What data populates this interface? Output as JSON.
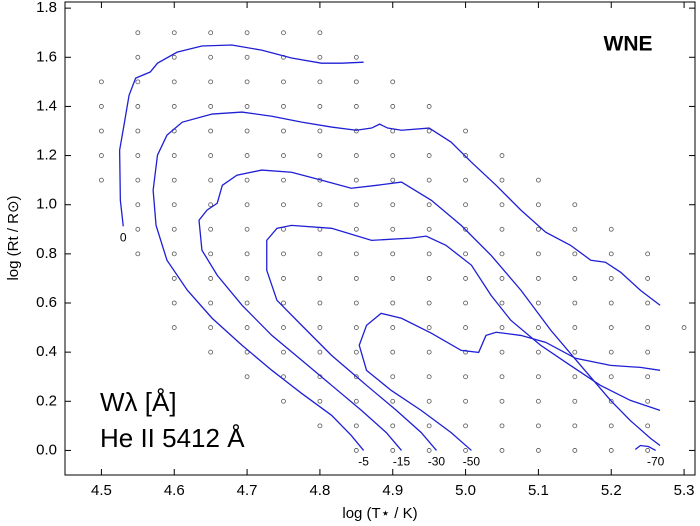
{
  "chart_data": {
    "type": "contour",
    "annotations": [
      "WNE",
      "Wλ [Å]",
      "He II 5412 Å"
    ],
    "x_label": "log (T⋆ / K)",
    "y_label": "log (Rt / R⊙)",
    "xlim": [
      4.45,
      5.315
    ],
    "ylim": [
      -0.1,
      1.825
    ],
    "xticks": [
      4.5,
      4.6,
      4.7,
      4.8,
      4.9,
      {
        "value": 5,
        "label": "5.0"
      },
      5.1,
      5.2,
      5.3
    ],
    "yticks": [
      {
        "value": 0,
        "label": "0.0"
      },
      0.2,
      0.4,
      0.6,
      0.8,
      {
        "value": 1,
        "label": "1.0"
      },
      1.2,
      1.4,
      1.6,
      1.8
    ],
    "color": "#1f1fd6",
    "point_color": "#555555",
    "points": [
      {
        "x": 4.5,
        "y": [
          1.1,
          1.2,
          1.3,
          1.4,
          1.5
        ]
      },
      {
        "x": 4.55,
        "y": [
          0.8,
          0.9,
          1.0,
          1.1,
          1.2,
          1.3,
          1.4,
          1.5,
          1.6,
          1.7
        ]
      },
      {
        "x": 4.6,
        "y": [
          0.5,
          0.6,
          0.7,
          0.8,
          0.9,
          1.0,
          1.1,
          1.2,
          1.3,
          1.4,
          1.5,
          1.6,
          1.7
        ]
      },
      {
        "x": 4.65,
        "y": [
          0.4,
          0.5,
          0.6,
          0.7,
          0.8,
          0.9,
          1.0,
          1.1,
          1.2,
          1.3,
          1.4,
          1.5,
          1.6,
          1.7
        ]
      },
      {
        "x": 4.7,
        "y": [
          0.3,
          0.4,
          0.5,
          0.6,
          0.7,
          0.8,
          0.9,
          1.0,
          1.1,
          1.2,
          1.3,
          1.4,
          1.5,
          1.6,
          1.7
        ]
      },
      {
        "x": 4.75,
        "y": [
          0.2,
          0.3,
          0.4,
          0.5,
          0.6,
          0.7,
          0.8,
          0.9,
          1.0,
          1.1,
          1.2,
          1.3,
          1.4,
          1.5,
          1.6,
          1.7
        ]
      },
      {
        "x": 4.8,
        "y": [
          0.1,
          0.2,
          0.3,
          0.4,
          0.5,
          0.6,
          0.7,
          0.8,
          0.9,
          1.0,
          1.1,
          1.2,
          1.3,
          1.4,
          1.5,
          1.6,
          1.7
        ]
      },
      {
        "x": 4.85,
        "y": [
          0,
          0.1,
          0.2,
          0.3,
          0.4,
          0.5,
          0.6,
          0.7,
          0.8,
          0.9,
          1.0,
          1.1,
          1.2,
          1.3,
          1.4,
          1.5,
          1.6
        ]
      },
      {
        "x": 4.9,
        "y": [
          0,
          0.1,
          0.2,
          0.3,
          0.4,
          0.5,
          0.6,
          0.7,
          0.8,
          0.9,
          1.0,
          1.1,
          1.2,
          1.3,
          1.4,
          1.5
        ]
      },
      {
        "x": 4.95,
        "y": [
          0,
          0.1,
          0.2,
          0.3,
          0.4,
          0.5,
          0.6,
          0.7,
          0.8,
          0.9,
          1.0,
          1.1,
          1.2,
          1.3,
          1.4
        ]
      },
      {
        "x": 5.0,
        "y": [
          0,
          0.1,
          0.2,
          0.3,
          0.4,
          0.5,
          0.6,
          0.7,
          0.8,
          0.9,
          1.0,
          1.1,
          1.2,
          1.3
        ]
      },
      {
        "x": 5.05,
        "y": [
          0,
          0.1,
          0.2,
          0.3,
          0.4,
          0.5,
          0.6,
          0.7,
          0.8,
          0.9,
          1.0,
          1.1,
          1.2
        ]
      },
      {
        "x": 5.1,
        "y": [
          0,
          0.1,
          0.2,
          0.3,
          0.4,
          0.5,
          0.6,
          0.7,
          0.8,
          0.9,
          1.0,
          1.1
        ]
      },
      {
        "x": 5.15,
        "y": [
          0,
          0.1,
          0.2,
          0.3,
          0.4,
          0.5,
          0.6,
          0.7,
          0.8,
          0.9,
          1.0
        ]
      },
      {
        "x": 5.2,
        "y": [
          0,
          0.1,
          0.2,
          0.3,
          0.4,
          0.5,
          0.6,
          0.7,
          0.8,
          0.9
        ]
      },
      {
        "x": 5.25,
        "y": [
          0,
          0.1,
          0.2,
          0.3,
          0.4,
          0.5,
          0.6,
          0.7,
          0.8
        ]
      },
      {
        "x": 5.3,
        "y": [
          0.5
        ]
      }
    ],
    "contours": [
      {
        "label": "0",
        "x": [
          4.53,
          4.526,
          4.525,
          4.531,
          4.538,
          4.547,
          4.567,
          4.577,
          4.604,
          4.638,
          4.679,
          4.72,
          4.761,
          4.802,
          4.83,
          4.86
        ],
        "y": [
          0.912,
          1.018,
          1.222,
          1.324,
          1.446,
          1.515,
          1.54,
          1.576,
          1.621,
          1.646,
          1.65,
          1.629,
          1.597,
          1.576,
          1.576,
          1.58
        ]
      },
      {
        "label": "-5",
        "x": [
          4.86,
          4.843,
          4.816,
          4.775,
          4.734,
          4.693,
          4.652,
          4.618,
          4.59,
          4.575,
          4.571,
          4.577,
          4.59,
          4.611,
          4.652,
          4.693,
          4.734,
          4.775,
          4.816,
          4.85,
          4.871,
          4.882,
          4.893,
          4.912,
          4.95,
          4.98,
          5.008,
          5.042,
          5.076,
          5.11,
          5.144,
          5.172,
          5.192,
          5.213,
          5.24,
          5.267
        ],
        "y": [
          0,
          0.061,
          0.143,
          0.232,
          0.326,
          0.428,
          0.538,
          0.652,
          0.774,
          0.916,
          1.059,
          1.202,
          1.283,
          1.336,
          1.369,
          1.377,
          1.36,
          1.336,
          1.316,
          1.303,
          1.312,
          1.328,
          1.312,
          1.303,
          1.312,
          1.255,
          1.173,
          1.079,
          0.978,
          0.888,
          0.835,
          0.774,
          0.766,
          0.725,
          0.652,
          0.591
        ]
      },
      {
        "label": "-15",
        "x": [
          4.912,
          4.891,
          4.857,
          4.816,
          4.775,
          4.734,
          4.693,
          4.659,
          4.638,
          4.634,
          4.645,
          4.659,
          4.666,
          4.686,
          4.72,
          4.761,
          4.802,
          4.843,
          4.878,
          4.912,
          4.953,
          4.994,
          5.035,
          5.076,
          5.117,
          5.158,
          5.199,
          5.226,
          5.254,
          5.267
        ],
        "y": [
          0,
          0.073,
          0.163,
          0.265,
          0.367,
          0.468,
          0.591,
          0.713,
          0.815,
          0.937,
          0.978,
          1.006,
          1.079,
          1.12,
          1.141,
          1.132,
          1.1,
          1.067,
          1.079,
          1.092,
          1.018,
          0.916,
          0.794,
          0.652,
          0.489,
          0.346,
          0.204,
          0.122,
          0.049,
          0.02
        ]
      },
      {
        "label": "-30",
        "x": [
          4.96,
          4.939,
          4.905,
          4.864,
          4.816,
          4.775,
          4.741,
          4.727,
          4.727,
          4.741,
          4.761,
          4.816,
          4.871,
          4.925,
          4.946,
          4.973,
          5.008,
          5.035,
          5.062,
          5.103,
          5.144,
          5.185,
          5.226,
          5.267
        ],
        "y": [
          0,
          0.073,
          0.163,
          0.265,
          0.387,
          0.509,
          0.611,
          0.733,
          0.855,
          0.904,
          0.916,
          0.904,
          0.855,
          0.864,
          0.872,
          0.835,
          0.754,
          0.631,
          0.53,
          0.428,
          0.346,
          0.265,
          0.204,
          0.163
        ]
      },
      {
        "label": "-50",
        "x": [
          5.008,
          4.98,
          4.939,
          4.898,
          4.864,
          4.854,
          4.864,
          4.884,
          4.912,
          4.953,
          4.994,
          5.018,
          5.028,
          5.042,
          5.076,
          5.11,
          5.151,
          5.199,
          5.24,
          5.267
        ],
        "y": [
          0,
          0.073,
          0.163,
          0.244,
          0.326,
          0.428,
          0.509,
          0.558,
          0.538,
          0.477,
          0.407,
          0.399,
          0.468,
          0.481,
          0.468,
          0.44,
          0.375,
          0.346,
          0.338,
          0.326
        ]
      },
      {
        "label": "-70",
        "x": [
          5.233,
          5.24,
          5.251,
          5.261
        ],
        "y": [
          0.004,
          0.02,
          0.016,
          0
        ]
      }
    ]
  }
}
